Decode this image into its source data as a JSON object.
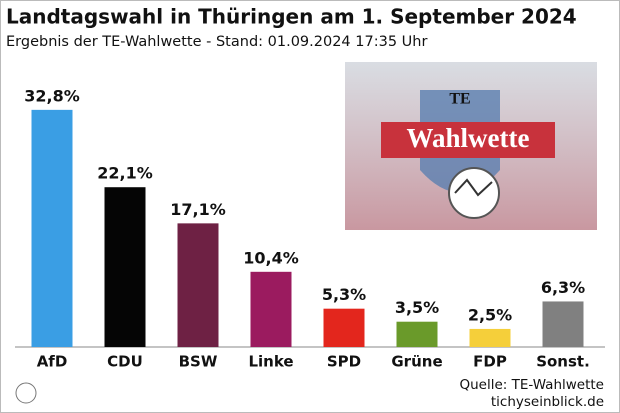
{
  "chart_data": {
    "type": "bar",
    "title": "Landtagswahl in Thüringen am 1. September 2024",
    "subtitle": "Ergebnis der TE-Wahlwette - Stand: 01.09.2024 17:35 Uhr",
    "categories": [
      "AfD",
      "CDU",
      "BSW",
      "Linke",
      "SPD",
      "Grüne",
      "FDP",
      "Sonst."
    ],
    "values": [
      32.8,
      22.1,
      17.1,
      10.4,
      5.3,
      3.5,
      2.5,
      6.3
    ],
    "value_labels": [
      "32,8%",
      "22,1%",
      "17,1%",
      "10,4%",
      "5,3%",
      "3,5%",
      "2,5%",
      "6,3%"
    ],
    "colors": [
      "#3a9ee4",
      "#050505",
      "#6e2144",
      "#9b1b5f",
      "#e3261d",
      "#6a9a2a",
      "#f5cf3a",
      "#808080"
    ],
    "image_text": [
      "TE",
      "Wahlwette"
    ],
    "source": "Quelle: TE-Wahlwette",
    "website": "tichyseinblick.de"
  }
}
